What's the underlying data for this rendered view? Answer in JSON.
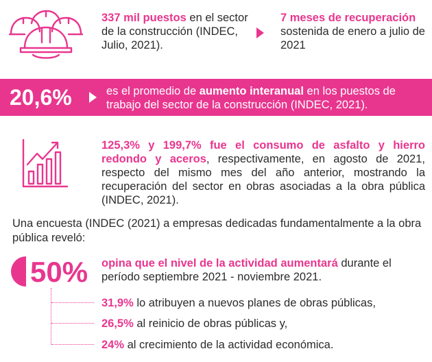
{
  "stat1": {
    "highlight": "337 mil puestos",
    "text": " en el sector de la construcción (INDEC, Julio, 2021)."
  },
  "stat2": {
    "highlight": "7 meses de recuperación",
    "text": "sostenida de enero a julio de 2021"
  },
  "banner": {
    "value": "20,6%",
    "pre": "es el promedio de ",
    "bold": "aumento interanual",
    "post": " en los puestos de trabajo del sector de la construcción (INDEC, 2021)."
  },
  "stat3": {
    "highlight": "125,3% y 199,7% fue el consumo de asfalto y hierro redondo y aceros",
    "text": ", respectivamente, en agosto de 2021, respecto del mismo mes del año anterior, mostrando la recuperación del sector en obras asociadas a la obra pública (INDEC, 2021)."
  },
  "survey": {
    "intro": "Una encuesta (INDEC (2021) a empresas dedicadas fundamentalmente a la obra pública reveló:",
    "value": "50%",
    "highlight": "opina que el nivel de la actividad aumentará",
    "text": " durante el período septiembre 2021 - noviembre 2021.",
    "items": [
      {
        "pct": "31,9%",
        "text": " lo atribuyen a nuevos planes de obras públicas,"
      },
      {
        "pct": "26,5%",
        "text": " al reinicio de obras públicas y,"
      },
      {
        "pct": "24%",
        "text": " al crecimiento de la actividad económica."
      }
    ]
  },
  "colors": {
    "accent": "#e8368f",
    "text": "#2b2b2b",
    "banner_text": "#ffffff"
  },
  "icons": [
    "hard-hats-icon",
    "bar-chart-growth-icon",
    "arrow-right-icon",
    "half-circle-icon"
  ]
}
